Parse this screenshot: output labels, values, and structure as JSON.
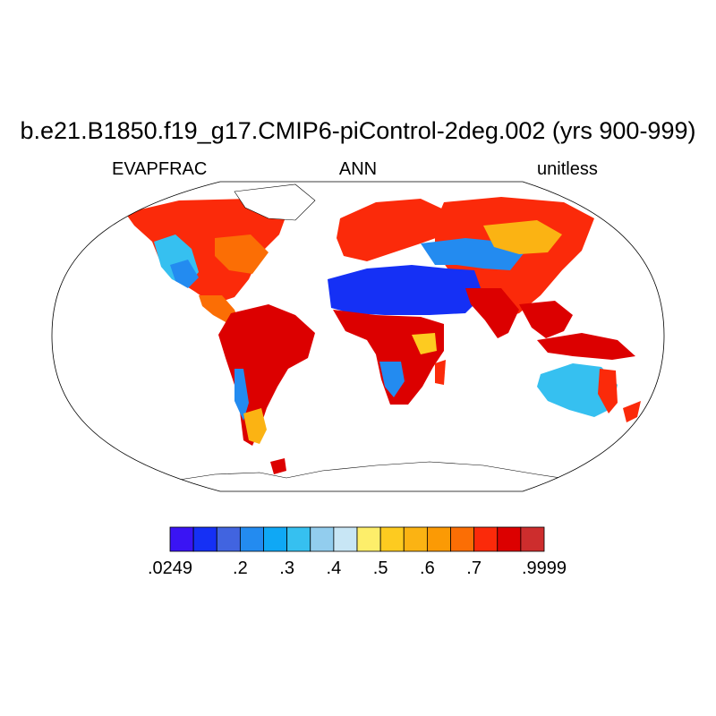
{
  "title": "b.e21.B1850.f19_g17.CMIP6-piControl-2deg.002 (yrs 900-999)",
  "left_subtitle": "EVAPFRAC",
  "center_subtitle": "ANN",
  "right_subtitle": "unitless",
  "projection": "Robinson (global)",
  "colorbar": {
    "colors": [
      "#3a14f4",
      "#1530f5",
      "#4164e0",
      "#238bf0",
      "#0fa8f5",
      "#36c0f0",
      "#92cdee",
      "#c8e6f5",
      "#fdee6a",
      "#fdcb20",
      "#fbb313",
      "#fb9a05",
      "#fb6e05",
      "#fb2a0a",
      "#dc0000",
      "#cd2d2d"
    ],
    "labels": [
      ".0249",
      ".2",
      ".3",
      ".4",
      ".5",
      ".6",
      ".7",
      ".9999"
    ],
    "label_positions": [
      0,
      3,
      5,
      7,
      9,
      11,
      13,
      16
    ]
  }
}
